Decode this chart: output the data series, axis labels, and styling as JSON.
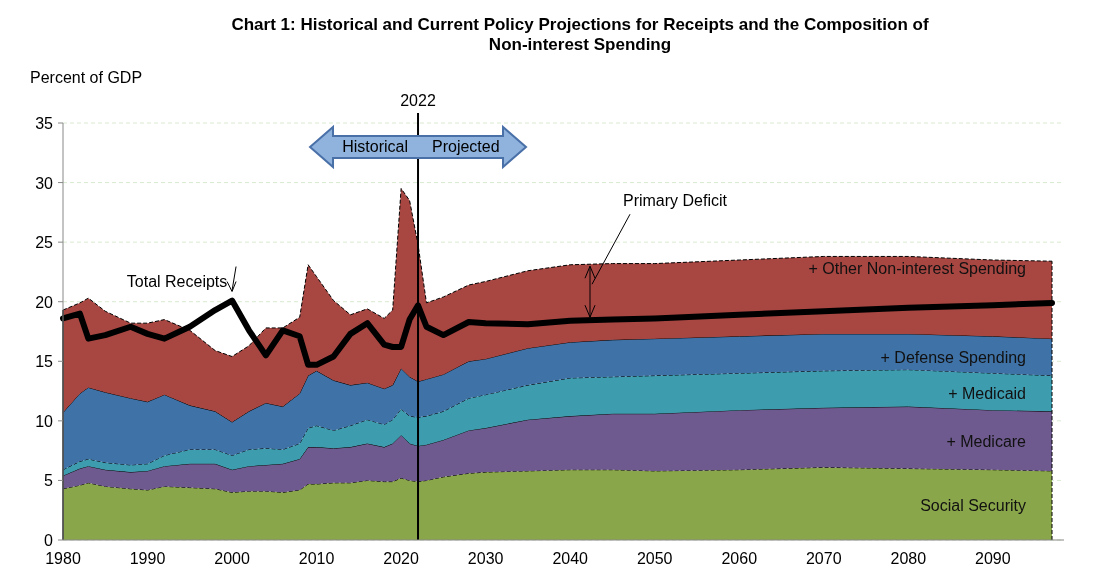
{
  "chart_data": {
    "type": "area",
    "stacked": true,
    "title": "Chart 1:  Historical and Current Policy Projections for Receipts and the Composition of Non-interest Spending",
    "ylabel": "Percent of GDP",
    "x": [
      1980,
      1982,
      1983,
      1985,
      1988,
      1990,
      1992,
      1995,
      1998,
      2000,
      2002,
      2004,
      2006,
      2008,
      2009,
      2010,
      2012,
      2014,
      2016,
      2018,
      2019,
      2020,
      2021,
      2022,
      2023,
      2025,
      2028,
      2030,
      2035,
      2040,
      2045,
      2050,
      2060,
      2070,
      2080,
      2090,
      2097
    ],
    "series": [
      {
        "name": "Social Security",
        "color": "#8aa64a",
        "values": [
          4.3,
          4.6,
          4.8,
          4.5,
          4.3,
          4.2,
          4.5,
          4.4,
          4.3,
          4.0,
          4.1,
          4.1,
          4.0,
          4.2,
          4.7,
          4.7,
          4.8,
          4.8,
          5.0,
          4.9,
          4.9,
          5.2,
          5.0,
          4.9,
          5.0,
          5.3,
          5.6,
          5.7,
          5.8,
          5.9,
          5.9,
          5.8,
          5.9,
          6.1,
          6.0,
          5.9,
          5.8
        ]
      },
      {
        "name": "+  Medicare",
        "color": "#6f5a8f",
        "values": [
          1.1,
          1.4,
          1.4,
          1.4,
          1.4,
          1.6,
          1.7,
          2.0,
          2.1,
          1.9,
          2.1,
          2.2,
          2.4,
          2.6,
          3.1,
          3.1,
          2.9,
          3.0,
          3.1,
          2.9,
          3.2,
          3.6,
          3.1,
          3.0,
          3.0,
          3.1,
          3.6,
          3.7,
          4.3,
          4.5,
          4.7,
          4.8,
          5.0,
          5.0,
          5.2,
          5.0,
          5.0
        ]
      },
      {
        "name": "+ Medicaid",
        "color": "#3e9caf",
        "values": [
          0.5,
          0.6,
          0.6,
          0.6,
          0.6,
          0.6,
          0.9,
          1.2,
          1.2,
          1.2,
          1.4,
          1.4,
          1.2,
          1.3,
          1.6,
          1.8,
          1.5,
          1.8,
          2.0,
          1.9,
          2.0,
          2.2,
          2.3,
          2.4,
          2.4,
          2.4,
          2.7,
          2.8,
          2.9,
          3.2,
          3.1,
          3.2,
          3.1,
          3.1,
          3.1,
          3.1,
          3.0
        ]
      },
      {
        "name": "+ Defense Spending",
        "color": "#3f73a8",
        "values": [
          4.8,
          5.7,
          6.0,
          5.9,
          5.6,
          5.2,
          5.1,
          3.7,
          3.2,
          2.8,
          3.2,
          3.8,
          3.6,
          4.2,
          4.4,
          4.6,
          4.2,
          3.4,
          3.1,
          3.0,
          2.9,
          3.4,
          3.3,
          3.0,
          3.1,
          3.1,
          3.1,
          3.0,
          3.1,
          3.0,
          3.1,
          3.1,
          3.1,
          3.1,
          3.0,
          3.1,
          3.1
        ]
      },
      {
        "name": "+ Other Non-interest Spending",
        "color": "#a84642",
        "values": [
          8.6,
          7.6,
          7.5,
          6.8,
          6.3,
          6.6,
          6.3,
          6.3,
          5.1,
          5.5,
          5.5,
          6.3,
          6.6,
          6.4,
          9.3,
          7.9,
          6.7,
          5.9,
          6.2,
          5.9,
          6.3,
          15.1,
          14.8,
          11.5,
          6.4,
          6.5,
          6.4,
          6.5,
          6.5,
          6.5,
          6.4,
          6.3,
          6.4,
          6.5,
          6.5,
          6.4,
          6.5
        ]
      },
      {
        "name": "Total Receipts",
        "type": "line",
        "color": "#000000",
        "values": [
          18.6,
          19.0,
          16.9,
          17.2,
          17.9,
          17.3,
          16.9,
          17.9,
          19.3,
          20.1,
          17.6,
          15.5,
          17.6,
          17.1,
          14.7,
          14.7,
          15.4,
          17.3,
          18.2,
          16.4,
          16.2,
          16.2,
          18.5,
          19.7,
          17.9,
          17.2,
          18.3,
          18.2,
          18.1,
          18.4,
          18.5,
          18.6,
          18.9,
          19.2,
          19.5,
          19.7,
          19.9
        ]
      }
    ],
    "xlim": [
      1980,
      2097
    ],
    "ylim": [
      0,
      35
    ],
    "xticks": [
      1980,
      1990,
      2000,
      2010,
      2020,
      2030,
      2040,
      2050,
      2060,
      2070,
      2080,
      2090
    ],
    "yticks": [
      0,
      5,
      10,
      15,
      20,
      25,
      30,
      35
    ],
    "grid": "y",
    "ref_lines": [
      {
        "axis": "x",
        "value": 2022,
        "label": "2022",
        "color": "#000000"
      }
    ],
    "annotations": [
      "Historical",
      "Projected",
      "Primary Deficit"
    ]
  }
}
